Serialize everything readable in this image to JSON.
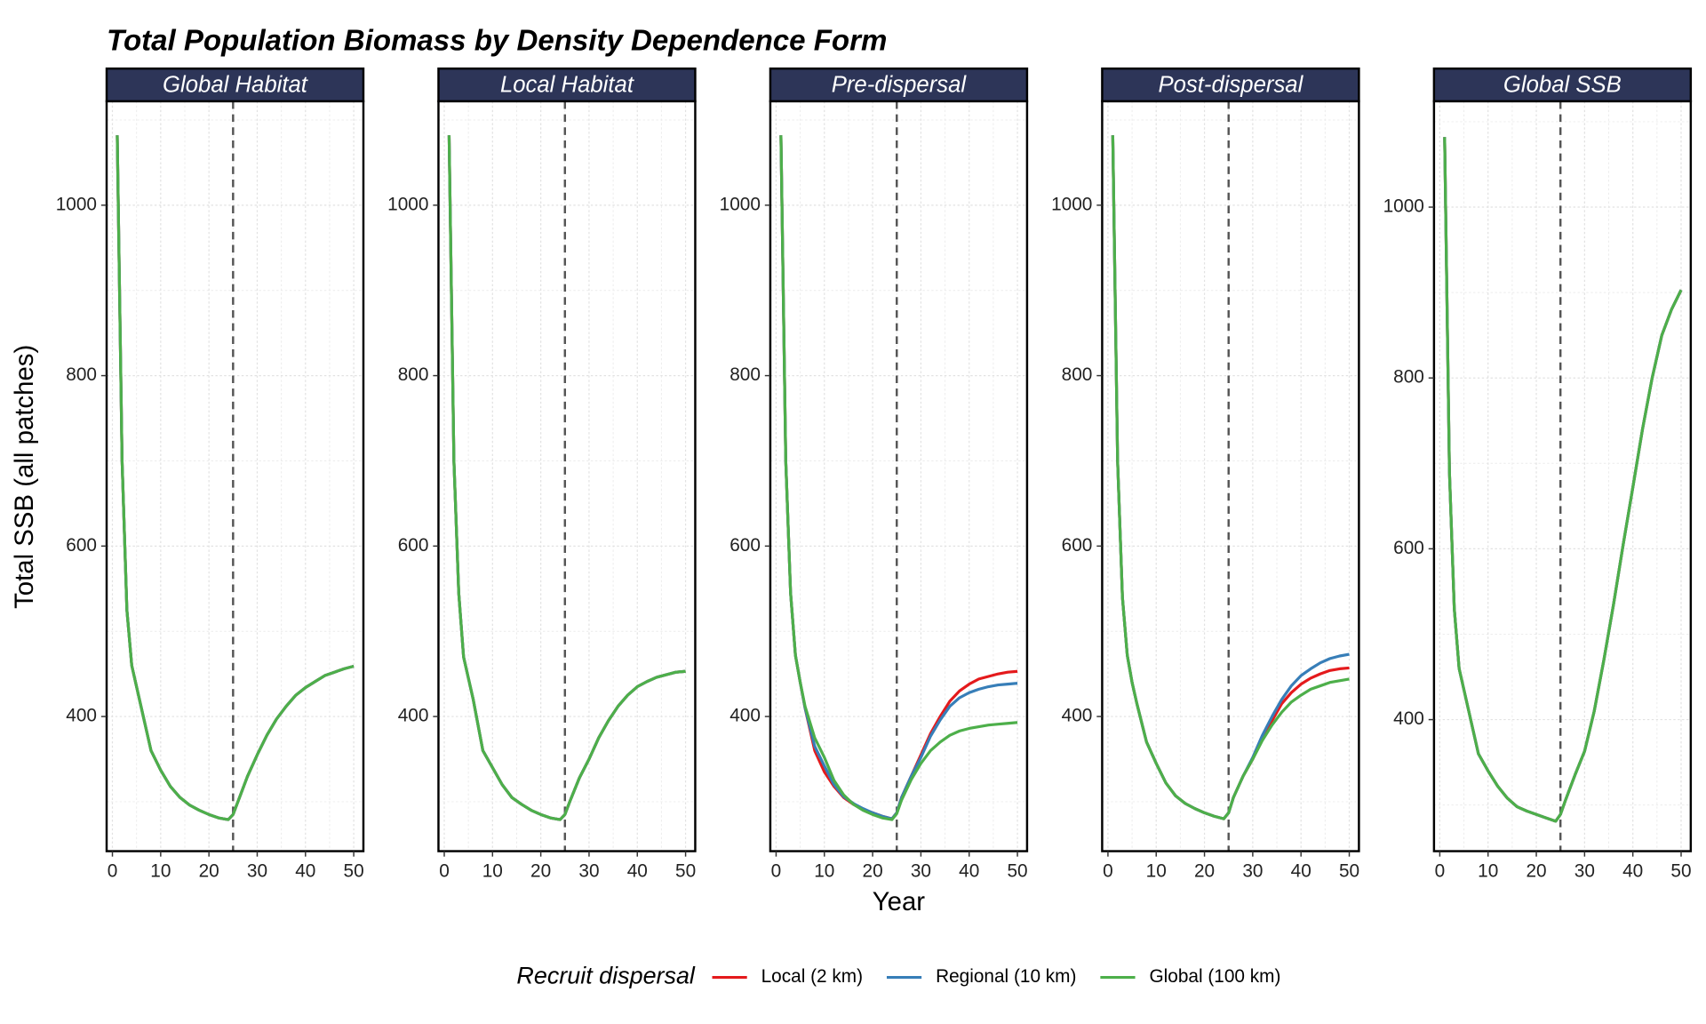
{
  "title": "Total Population Biomass by Density Dependence Form",
  "xlabel": "Year",
  "ylabel": "Total SSB (all patches)",
  "legend_title": "Recruit dispersal",
  "legend": "bottom",
  "chart_data": [
    {
      "type": "line",
      "title": "Global Habitat",
      "x": [
        1,
        2,
        3,
        4,
        5,
        6,
        8,
        10,
        12,
        14,
        16,
        18,
        20,
        22,
        24,
        25,
        26,
        28,
        30,
        32,
        34,
        36,
        38,
        40,
        42,
        44,
        46,
        48,
        50
      ],
      "series": [
        {
          "name": "Local (2 km)",
          "color": "#e41a1c",
          "values": [
            1082,
            700,
            525,
            460,
            435,
            410,
            360,
            337,
            318,
            305,
            296,
            290,
            285,
            281,
            279,
            285,
            300,
            330,
            355,
            378,
            397,
            412,
            425,
            434,
            441,
            448,
            452,
            456,
            459
          ]
        },
        {
          "name": "Regional (10 km)",
          "color": "#377eb8",
          "values": [
            1082,
            700,
            525,
            460,
            435,
            410,
            360,
            337,
            318,
            305,
            296,
            290,
            285,
            281,
            279,
            285,
            300,
            330,
            355,
            378,
            397,
            412,
            425,
            434,
            441,
            448,
            452,
            456,
            459
          ]
        },
        {
          "name": "Global (100 km)",
          "color": "#4daf4a",
          "values": [
            1082,
            700,
            525,
            460,
            435,
            410,
            360,
            337,
            318,
            305,
            296,
            290,
            285,
            281,
            279,
            285,
            300,
            330,
            355,
            378,
            397,
            412,
            425,
            434,
            441,
            448,
            452,
            456,
            459
          ]
        }
      ],
      "xlim": [
        -1.2,
        52
      ],
      "ylim": [
        242,
        1122
      ],
      "xticks": [
        0,
        10,
        20,
        30,
        40,
        50
      ],
      "yticks": [
        400,
        600,
        800,
        1000
      ],
      "xgrid_minor": [
        5,
        15,
        25,
        35,
        45
      ],
      "ygrid_minor": [
        300,
        500,
        700,
        900,
        1100
      ],
      "vline": 25,
      "grid": true
    },
    {
      "type": "line",
      "title": "Local Habitat",
      "x": [
        1,
        2,
        3,
        4,
        5,
        6,
        8,
        10,
        12,
        14,
        16,
        18,
        20,
        22,
        24,
        25,
        26,
        28,
        30,
        32,
        34,
        36,
        38,
        40,
        42,
        44,
        46,
        48,
        50
      ],
      "series": [
        {
          "name": "Local (2 km)",
          "color": "#e41a1c",
          "values": [
            1082,
            700,
            545,
            470,
            445,
            420,
            360,
            340,
            320,
            305,
            297,
            290,
            285,
            281,
            279,
            285,
            300,
            328,
            350,
            375,
            395,
            412,
            425,
            435,
            441,
            446,
            449,
            452,
            453
          ]
        },
        {
          "name": "Regional (10 km)",
          "color": "#377eb8",
          "values": [
            1082,
            700,
            545,
            470,
            445,
            420,
            360,
            340,
            320,
            305,
            297,
            290,
            285,
            281,
            279,
            285,
            300,
            328,
            350,
            375,
            395,
            412,
            425,
            435,
            441,
            446,
            449,
            452,
            453
          ]
        },
        {
          "name": "Global (100 km)",
          "color": "#4daf4a",
          "values": [
            1082,
            700,
            545,
            470,
            445,
            420,
            360,
            340,
            320,
            305,
            297,
            290,
            285,
            281,
            279,
            285,
            300,
            328,
            350,
            375,
            395,
            412,
            425,
            435,
            441,
            446,
            449,
            452,
            453
          ]
        }
      ],
      "xlim": [
        -1.2,
        52
      ],
      "ylim": [
        242,
        1122
      ],
      "xticks": [
        0,
        10,
        20,
        30,
        40,
        50
      ],
      "yticks": [
        400,
        600,
        800,
        1000
      ],
      "xgrid_minor": [
        5,
        15,
        25,
        35,
        45
      ],
      "ygrid_minor": [
        300,
        500,
        700,
        900,
        1100
      ],
      "vline": 25,
      "grid": true
    },
    {
      "type": "line",
      "title": "Pre-dispersal",
      "x": [
        1,
        2,
        3,
        4,
        5,
        6,
        8,
        10,
        12,
        14,
        16,
        18,
        20,
        22,
        24,
        25,
        26,
        28,
        30,
        32,
        34,
        36,
        38,
        40,
        42,
        44,
        46,
        48,
        50
      ],
      "series": [
        {
          "name": "Local (2 km)",
          "color": "#e41a1c",
          "values": [
            1082,
            700,
            545,
            472,
            440,
            410,
            360,
            335,
            318,
            305,
            297,
            291,
            287,
            283,
            280,
            287,
            305,
            330,
            355,
            380,
            400,
            418,
            430,
            438,
            444,
            447,
            450,
            452,
            453
          ]
        },
        {
          "name": "Regional (10 km)",
          "color": "#377eb8",
          "values": [
            1082,
            700,
            545,
            472,
            440,
            410,
            365,
            342,
            320,
            306,
            298,
            292,
            287,
            283,
            280,
            287,
            305,
            330,
            352,
            377,
            396,
            412,
            422,
            428,
            432,
            435,
            437,
            438,
            439
          ]
        },
        {
          "name": "Global (100 km)",
          "color": "#4daf4a",
          "values": [
            1082,
            700,
            545,
            472,
            440,
            412,
            375,
            352,
            325,
            308,
            297,
            290,
            285,
            281,
            279,
            286,
            302,
            326,
            345,
            360,
            370,
            378,
            383,
            386,
            388,
            390,
            391,
            392,
            393
          ]
        }
      ],
      "xlim": [
        -1.2,
        52
      ],
      "ylim": [
        242,
        1122
      ],
      "xticks": [
        0,
        10,
        20,
        30,
        40,
        50
      ],
      "yticks": [
        400,
        600,
        800,
        1000
      ],
      "xgrid_minor": [
        5,
        15,
        25,
        35,
        45
      ],
      "ygrid_minor": [
        300,
        500,
        700,
        900,
        1100
      ],
      "vline": 25,
      "grid": true
    },
    {
      "type": "line",
      "title": "Post-dispersal",
      "x": [
        1,
        2,
        3,
        4,
        5,
        6,
        8,
        10,
        12,
        14,
        16,
        18,
        20,
        22,
        24,
        25,
        26,
        28,
        30,
        32,
        34,
        36,
        38,
        40,
        42,
        44,
        46,
        48,
        50
      ],
      "series": [
        {
          "name": "Local (2 km)",
          "color": "#e41a1c",
          "values": [
            1082,
            700,
            540,
            472,
            440,
            415,
            370,
            345,
            322,
            307,
            298,
            292,
            287,
            283,
            280,
            287,
            305,
            330,
            350,
            375,
            395,
            415,
            428,
            438,
            445,
            450,
            454,
            456,
            457
          ]
        },
        {
          "name": "Regional (10 km)",
          "color": "#377eb8",
          "values": [
            1082,
            700,
            540,
            472,
            440,
            415,
            370,
            345,
            322,
            307,
            298,
            292,
            287,
            283,
            280,
            287,
            305,
            330,
            352,
            378,
            400,
            420,
            436,
            448,
            456,
            463,
            468,
            471,
            473
          ]
        },
        {
          "name": "Global (100 km)",
          "color": "#4daf4a",
          "values": [
            1082,
            700,
            540,
            472,
            440,
            415,
            370,
            345,
            322,
            307,
            298,
            292,
            287,
            283,
            280,
            287,
            305,
            330,
            350,
            372,
            390,
            405,
            417,
            425,
            432,
            436,
            440,
            442,
            444
          ]
        }
      ],
      "xlim": [
        -1.2,
        52
      ],
      "ylim": [
        242,
        1122
      ],
      "xticks": [
        0,
        10,
        20,
        30,
        40,
        50
      ],
      "yticks": [
        400,
        600,
        800,
        1000
      ],
      "xgrid_minor": [
        5,
        15,
        25,
        35,
        45
      ],
      "ygrid_minor": [
        300,
        500,
        700,
        900,
        1100
      ],
      "vline": 25,
      "grid": true
    },
    {
      "type": "line",
      "title": "Global SSB",
      "x": [
        1,
        2,
        3,
        4,
        5,
        6,
        8,
        10,
        12,
        14,
        16,
        18,
        20,
        22,
        24,
        25,
        26,
        28,
        30,
        32,
        34,
        36,
        38,
        40,
        42,
        44,
        46,
        48,
        50
      ],
      "series": [
        {
          "name": "Local (2 km)",
          "color": "#e41a1c",
          "values": [
            1082,
            690,
            530,
            460,
            435,
            410,
            360,
            340,
            322,
            308,
            298,
            293,
            289,
            285,
            281,
            289,
            305,
            335,
            363,
            410,
            470,
            535,
            605,
            672,
            740,
            800,
            850,
            880,
            903
          ]
        },
        {
          "name": "Regional (10 km)",
          "color": "#377eb8",
          "values": [
            1082,
            690,
            530,
            460,
            435,
            410,
            360,
            340,
            322,
            308,
            298,
            293,
            289,
            285,
            281,
            289,
            305,
            335,
            363,
            410,
            470,
            535,
            605,
            672,
            740,
            800,
            850,
            880,
            903
          ]
        },
        {
          "name": "Global (100 km)",
          "color": "#4daf4a",
          "values": [
            1082,
            690,
            530,
            460,
            435,
            410,
            360,
            340,
            322,
            308,
            298,
            293,
            289,
            285,
            281,
            289,
            305,
            335,
            363,
            410,
            470,
            535,
            605,
            672,
            740,
            800,
            850,
            880,
            903
          ]
        }
      ],
      "xlim": [
        -1.2,
        52
      ],
      "ylim": [
        246,
        1124
      ],
      "xticks": [
        0,
        10,
        20,
        30,
        40,
        50
      ],
      "yticks": [
        400,
        600,
        800,
        1000
      ],
      "xgrid_minor": [
        5,
        15,
        25,
        35,
        45
      ],
      "ygrid_minor": [
        300,
        500,
        700,
        900,
        1100
      ],
      "vline": 25,
      "grid": true
    }
  ]
}
